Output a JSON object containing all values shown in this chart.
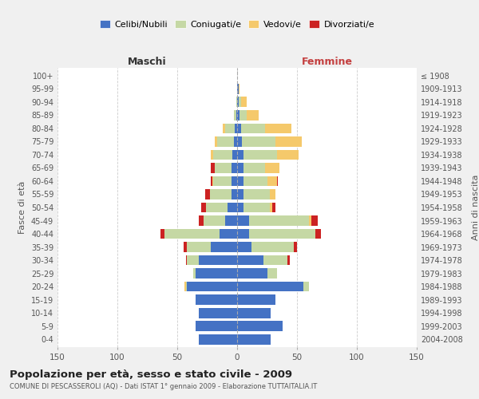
{
  "age_groups": [
    "0-4",
    "5-9",
    "10-14",
    "15-19",
    "20-24",
    "25-29",
    "30-34",
    "35-39",
    "40-44",
    "45-49",
    "50-54",
    "55-59",
    "60-64",
    "65-69",
    "70-74",
    "75-79",
    "80-84",
    "85-89",
    "90-94",
    "95-99",
    "100+"
  ],
  "birth_years": [
    "2004-2008",
    "1999-2003",
    "1994-1998",
    "1989-1993",
    "1984-1988",
    "1979-1983",
    "1974-1978",
    "1969-1973",
    "1964-1968",
    "1959-1963",
    "1954-1958",
    "1949-1953",
    "1944-1948",
    "1939-1943",
    "1934-1938",
    "1929-1933",
    "1924-1928",
    "1919-1923",
    "1914-1918",
    "1909-1913",
    "≤ 1908"
  ],
  "colors": {
    "celibi": "#4472C4",
    "coniugati": "#c5d8a4",
    "vedovi": "#f5c96b",
    "divorziati": "#cc2222"
  },
  "maschi": {
    "celibi": [
      32,
      35,
      32,
      35,
      42,
      35,
      32,
      22,
      15,
      10,
      8,
      5,
      5,
      5,
      4,
      3,
      2,
      1,
      0,
      0,
      0
    ],
    "coniugati": [
      0,
      0,
      0,
      0,
      1,
      2,
      10,
      20,
      46,
      18,
      18,
      18,
      15,
      14,
      16,
      14,
      8,
      2,
      1,
      0,
      0
    ],
    "vedovi": [
      0,
      0,
      0,
      0,
      1,
      0,
      0,
      0,
      0,
      0,
      0,
      0,
      1,
      0,
      2,
      2,
      2,
      0,
      0,
      0,
      0
    ],
    "divorziati": [
      0,
      0,
      0,
      0,
      0,
      0,
      1,
      3,
      3,
      4,
      4,
      4,
      1,
      3,
      0,
      0,
      0,
      0,
      0,
      0,
      0
    ]
  },
  "femmine": {
    "celibi": [
      28,
      38,
      28,
      32,
      55,
      25,
      22,
      12,
      10,
      10,
      5,
      5,
      5,
      5,
      5,
      4,
      3,
      2,
      1,
      1,
      0
    ],
    "coniugati": [
      0,
      0,
      0,
      0,
      5,
      8,
      20,
      35,
      55,
      50,
      22,
      22,
      20,
      18,
      28,
      28,
      20,
      6,
      2,
      0,
      0
    ],
    "vedovi": [
      0,
      0,
      0,
      0,
      0,
      0,
      0,
      0,
      0,
      2,
      2,
      5,
      8,
      12,
      18,
      22,
      22,
      10,
      5,
      1,
      0
    ],
    "divorziati": [
      0,
      0,
      0,
      0,
      0,
      0,
      2,
      3,
      5,
      5,
      3,
      0,
      1,
      0,
      0,
      0,
      0,
      0,
      0,
      0,
      0
    ]
  },
  "xlim": 150,
  "title": "Popolazione per età, sesso e stato civile - 2009",
  "subtitle": "COMUNE DI PESCASSEROLI (AQ) - Dati ISTAT 1° gennaio 2009 - Elaborazione TUTTAITALIA.IT",
  "ylabel_left": "Fasce di età",
  "ylabel_right": "Anni di nascita",
  "xlabel_maschi": "Maschi",
  "xlabel_femmine": "Femmine",
  "bg_color": "#f0f0f0",
  "plot_bg": "#ffffff"
}
